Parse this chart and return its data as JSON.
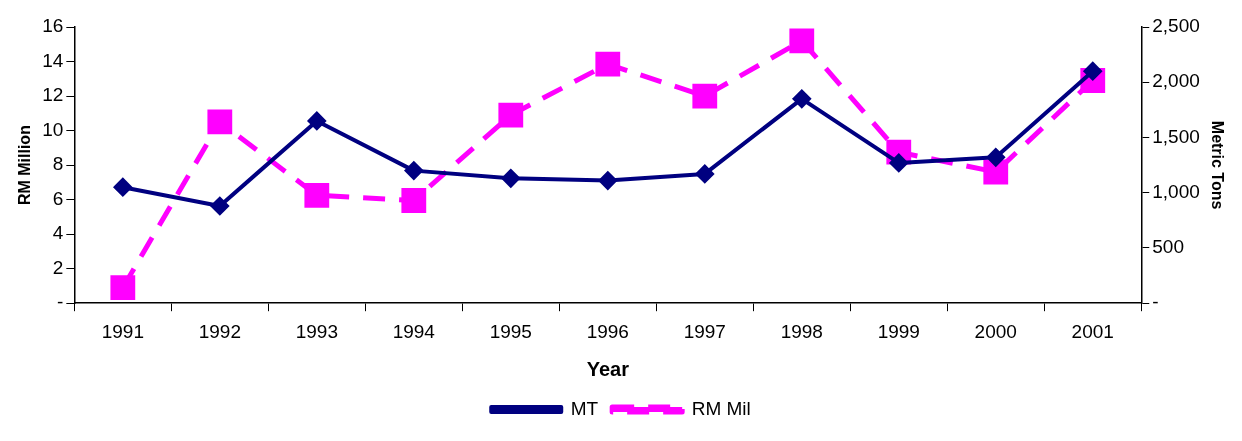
{
  "chart_data": {
    "type": "line",
    "xlabel": "Year",
    "ylabel": "RM Million",
    "y2label": "Metric Tons",
    "categories": [
      "1991",
      "1992",
      "1993",
      "1994",
      "1995",
      "1996",
      "1997",
      "1998",
      "1999",
      "2000",
      "2001"
    ],
    "series": [
      {
        "name": "RM Mil",
        "color": "#ff00ff",
        "marker": "square",
        "line_style": "dashed",
        "values": [
          0.9,
          10.5,
          6.25,
          5.95,
          10.9,
          13.85,
          12,
          15.2,
          8.75,
          7.6,
          12.9
        ]
      },
      {
        "name": "MT",
        "color": "#000080",
        "marker": "diamond",
        "line_style": "solid",
        "axis": "y2",
        "values": [
          1050,
          880,
          1650,
          1200,
          1130,
          1110,
          1170,
          1850,
          1270,
          1320,
          2100
        ]
      }
    ],
    "ylim": [
      0,
      16
    ],
    "yticks": [
      {
        "value": 0,
        "label": "-"
      },
      2,
      4,
      6,
      8,
      10,
      12,
      14,
      16
    ],
    "y2lim": [
      0,
      2500
    ],
    "y2ticks": [
      {
        "value": 0,
        "label": "-"
      },
      500,
      {
        "value": 1000,
        "label": "1,000"
      },
      {
        "value": 1500,
        "label": "1,500"
      },
      {
        "value": 2000,
        "label": "2,000"
      },
      {
        "value": 2500,
        "label": "2,500"
      }
    ],
    "grid": false,
    "legend": "bottom"
  }
}
